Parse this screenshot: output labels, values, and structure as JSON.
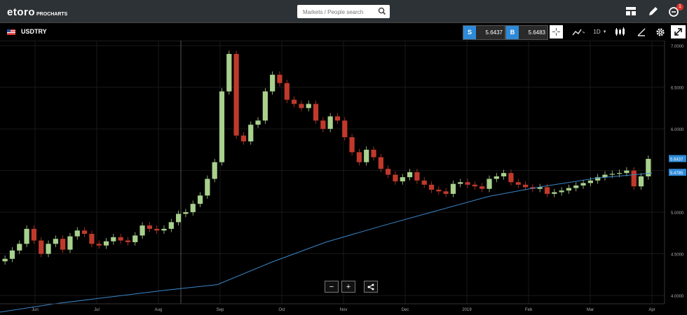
{
  "app": {
    "logo_text": "etoro",
    "logo_sub": "PROCHARTS",
    "search_placeholder": "Markets / People search",
    "notification_count": "1"
  },
  "symbol_bar": {
    "symbol": "USDTRY",
    "sell_tag": "S",
    "sell_price": "5.6437",
    "buy_tag": "B",
    "buy_price": "5.6483",
    "timeframe": "1D"
  },
  "zoom_controls": {
    "minus": "−",
    "plus": "+"
  },
  "colors": {
    "up": "#a9d18e",
    "down": "#c0392b",
    "ma": "#3a86c8",
    "price_label": "#2e8ad8",
    "ma_label": "#2e8ad8"
  },
  "chart_data": {
    "type": "candlestick",
    "ylim": [
      3.9,
      7.06
    ],
    "y_ticks": [
      "7.0000",
      "6.5000",
      "6.0000",
      "5.5000",
      "5.0000",
      "4.5000",
      "4.0000"
    ],
    "x_ticks": [
      "Jun",
      "Jul",
      "Aug",
      "Sep",
      "Oct",
      "Nov",
      "Dec",
      "2019",
      "Feb",
      "Mar",
      "Apr"
    ],
    "last_price_label": "5.6437",
    "ma_label": "5.4785",
    "moving_average": [
      3.8,
      3.9,
      3.98,
      4.06,
      4.13,
      4.4,
      4.64,
      4.83,
      5.01,
      5.19,
      5.31,
      5.41,
      5.47
    ],
    "close": [
      4.44,
      4.54,
      4.62,
      4.8,
      4.66,
      4.5,
      4.62,
      4.68,
      4.55,
      4.71,
      4.78,
      4.74,
      4.62,
      4.6,
      4.65,
      4.7,
      4.66,
      4.64,
      4.72,
      4.84,
      4.8,
      4.78,
      4.8,
      4.88,
      4.98,
      5.0,
      5.1,
      5.2,
      5.4,
      5.6,
      6.45,
      6.9,
      5.92,
      5.85,
      6.05,
      6.1,
      6.45,
      6.65,
      6.55,
      6.35,
      6.3,
      6.25,
      6.3,
      6.1,
      6.0,
      6.15,
      6.1,
      5.9,
      5.72,
      5.6,
      5.75,
      5.66,
      5.52,
      5.45,
      5.37,
      5.42,
      5.48,
      5.38,
      5.33,
      5.27,
      5.25,
      5.22,
      5.34,
      5.36,
      5.33,
      5.31,
      5.28,
      5.4,
      5.43,
      5.47,
      5.36,
      5.33,
      5.3,
      5.28,
      5.3,
      5.22,
      5.24,
      5.26,
      5.29,
      5.32,
      5.35,
      5.38,
      5.42,
      5.45,
      5.46,
      5.47,
      5.5,
      5.31,
      5.43,
      5.64
    ]
  }
}
